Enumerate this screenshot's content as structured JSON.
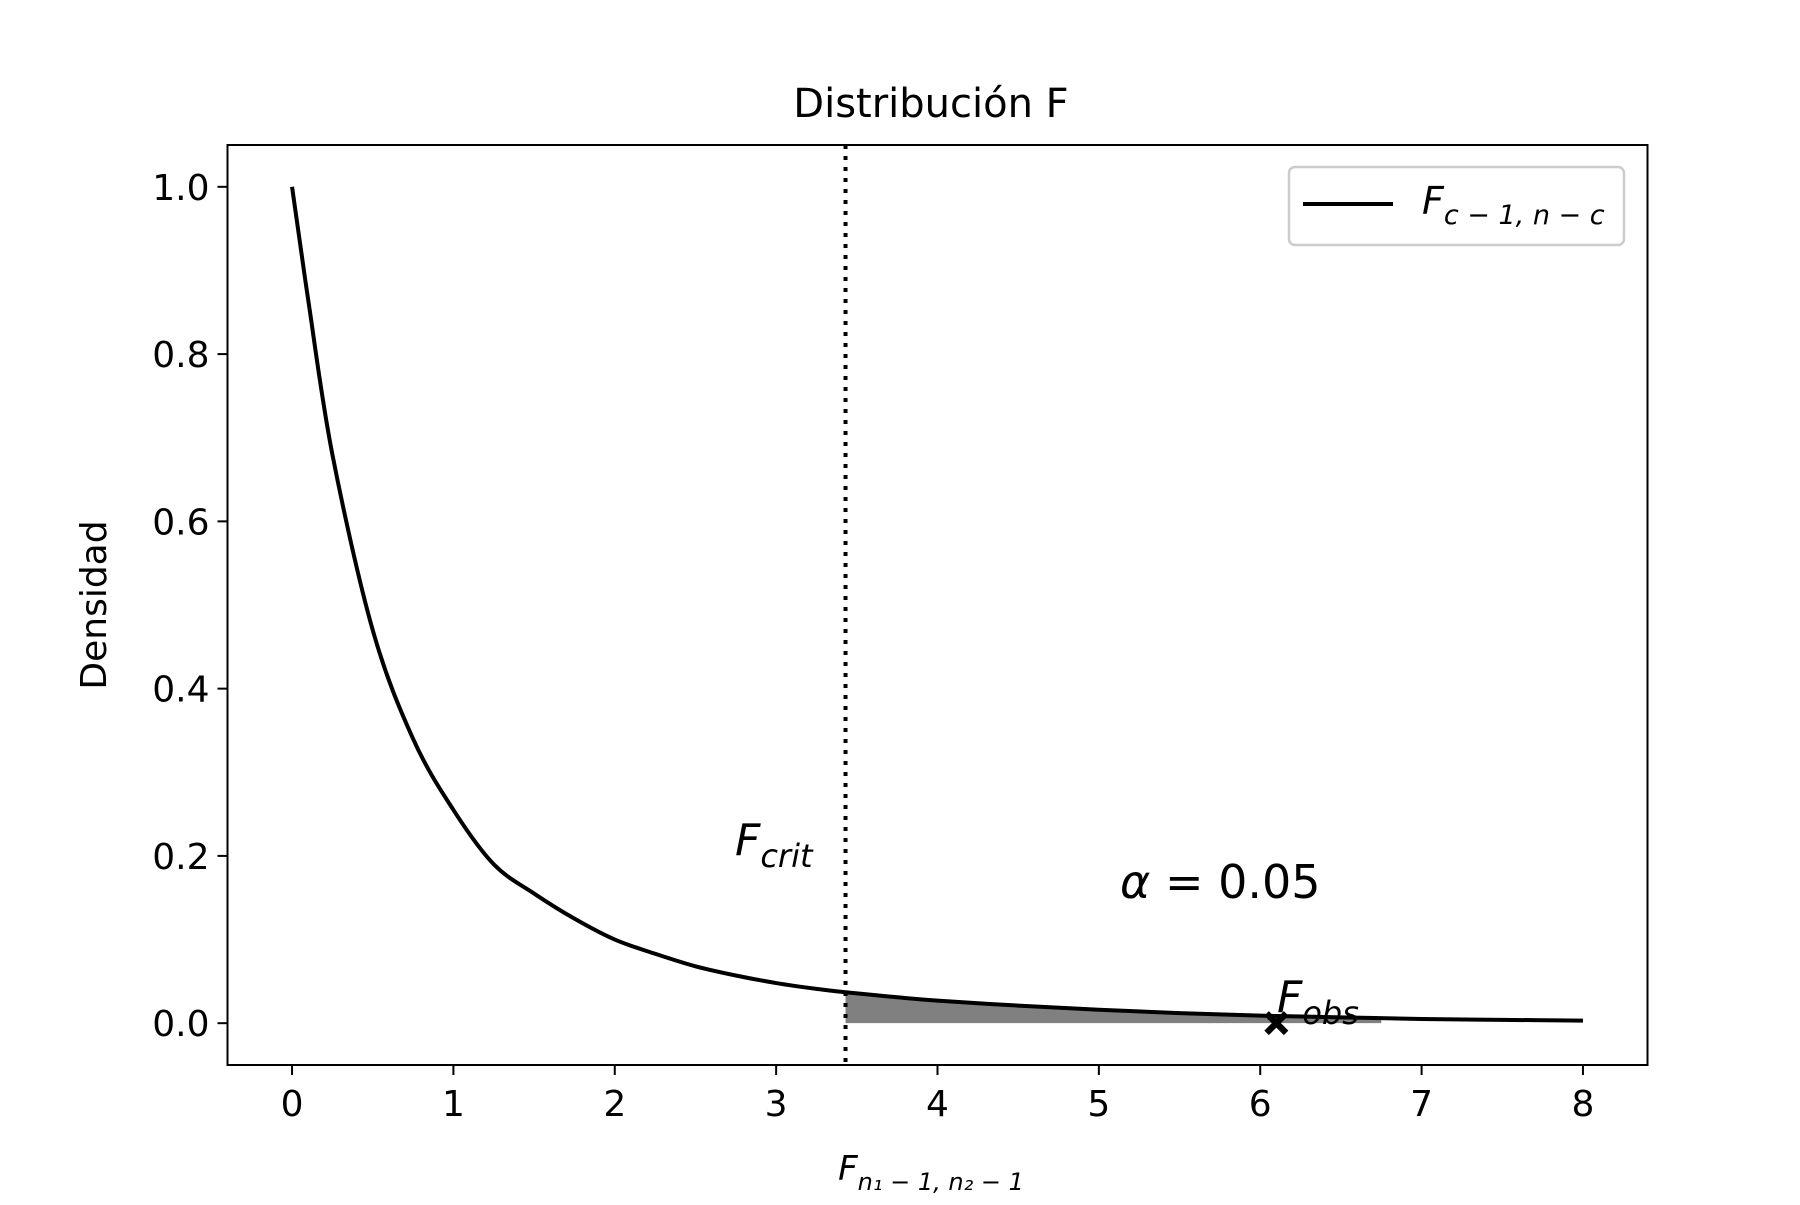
{
  "chart_data": {
    "type": "line",
    "title": "Distribución F",
    "xlabel": {
      "base": "F",
      "sub": "n₁ − 1, n₂ − 1"
    },
    "ylabel": "Densidad",
    "xlim": [
      -0.4,
      8.4
    ],
    "ylim": [
      -0.05,
      1.05
    ],
    "xticks": [
      0,
      1,
      2,
      3,
      4,
      5,
      6,
      7,
      8
    ],
    "yticks": [
      0.0,
      0.2,
      0.4,
      0.6,
      0.8,
      1.0
    ],
    "ytick_labels": [
      "0.0",
      "0.2",
      "0.4",
      "0.6",
      "0.8",
      "1.0"
    ],
    "grid": false,
    "legend": {
      "position": "top-right",
      "base": "F",
      "sub": "c − 1, n − c"
    },
    "series": [
      {
        "color": "#000000",
        "x": [
          0,
          0.1,
          0.25,
          0.5,
          0.75,
          1,
          1.25,
          1.5,
          1.75,
          2,
          2.25,
          2.5,
          2.75,
          3,
          3.25,
          3.43,
          3.75,
          4,
          4.5,
          5,
          5.5,
          6,
          6.5,
          7,
          7.5,
          8
        ],
        "y": [
          1.0,
          0.865,
          0.68,
          0.47,
          0.34,
          0.255,
          0.19,
          0.155,
          0.125,
          0.1,
          0.083,
          0.068,
          0.057,
          0.048,
          0.041,
          0.037,
          0.031,
          0.027,
          0.021,
          0.016,
          0.012,
          0.009,
          0.007,
          0.005,
          0.004,
          0.003
        ]
      }
    ],
    "critical_value": {
      "x": 3.43,
      "label_base": "F",
      "label_sub": "crit",
      "line_style": "dotted"
    },
    "shaded_region": {
      "from": 3.43,
      "to": 6.75,
      "color": "#808080"
    },
    "observed": {
      "x": 6.1,
      "y": 0.0,
      "label_base": "F",
      "label_sub": "obs",
      "marker": "X"
    },
    "annotation": {
      "alpha_symbol": "α",
      "text": " = 0.05"
    }
  }
}
